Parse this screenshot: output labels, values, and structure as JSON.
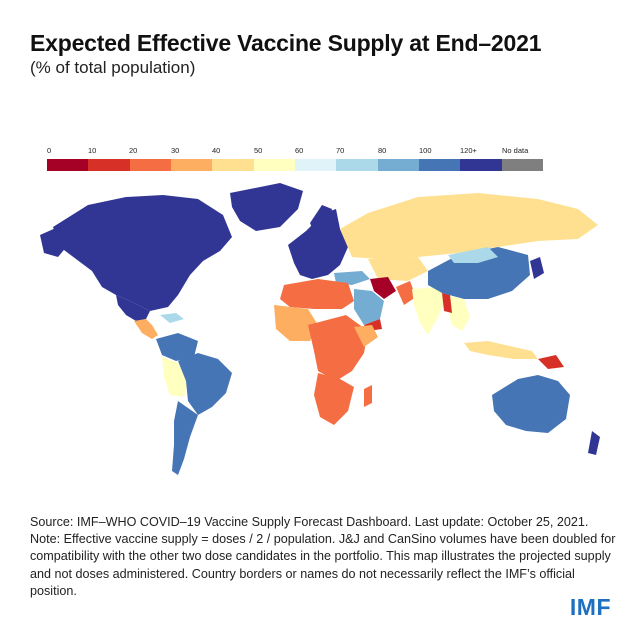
{
  "title": "Expected Effective Vaccine Supply at End–2021",
  "subtitle": "(% of total population)",
  "legend": {
    "labels": [
      "0",
      "10",
      "20",
      "30",
      "40",
      "50",
      "60",
      "70",
      "80",
      "100",
      "120+",
      "No data"
    ],
    "colors": [
      "#a50026",
      "#d73027",
      "#f46d43",
      "#fdae61",
      "#fee090",
      "#ffffbf",
      "#e0f3f8",
      "#abd9e9",
      "#74add1",
      "#4575b4",
      "#313695",
      "#7f7f7f"
    ]
  },
  "source": {
    "line1": "Source: IMF–WHO COVID–19 Vaccine Supply Forecast Dashboard. Last update: October 25, 2021.",
    "line2": "Note: Effective vaccine supply = doses / 2 / population. J&J and CanSino volumes have been doubled for compatibility with the other two dose candidates in the portfolio. This map illustrates the projected supply and not doses administered. Country borders or names do not necessarily reflect the IMF’s official position."
  },
  "logo": "IMF"
}
